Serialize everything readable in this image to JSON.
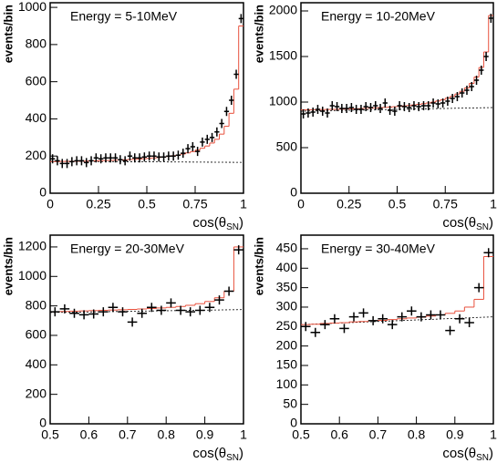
{
  "chart_data": [
    {
      "type": "histogram",
      "title": "Energy = 5-10MeV",
      "ylabel": "events/bin",
      "xlabel": [
        "cos(θ",
        "SN",
        ")"
      ],
      "bins": [
        0,
        0.025,
        0.05,
        0.075,
        0.1,
        0.125,
        0.15,
        0.175,
        0.2,
        0.225,
        0.25,
        0.275,
        0.3,
        0.325,
        0.35,
        0.375,
        0.4,
        0.425,
        0.45,
        0.475,
        0.5,
        0.525,
        0.55,
        0.575,
        0.6,
        0.625,
        0.65,
        0.675,
        0.7,
        0.725,
        0.75,
        0.775,
        0.8,
        0.825,
        0.85,
        0.875,
        0.9,
        0.925,
        0.95,
        0.975,
        1
      ],
      "values": [
        185,
        175,
        160,
        160,
        170,
        175,
        175,
        165,
        175,
        190,
        185,
        190,
        190,
        190,
        180,
        175,
        200,
        190,
        190,
        195,
        200,
        200,
        195,
        195,
        200,
        200,
        205,
        215,
        240,
        250,
        225,
        275,
        290,
        300,
        330,
        375,
        440,
        500,
        640,
        940
      ],
      "fit": [
        170,
        170,
        171,
        171,
        172,
        172,
        173,
        173,
        174,
        174,
        175,
        176,
        177,
        178,
        179,
        180,
        181,
        182,
        184,
        186,
        188,
        190,
        192,
        195,
        198,
        202,
        206,
        211,
        217,
        224,
        232,
        242,
        254,
        270,
        290,
        318,
        360,
        430,
        560,
        900
      ],
      "fit_color": "#e8503c",
      "baseline": [
        172,
        166
      ],
      "xlim": [
        0,
        1
      ],
      "ylim": [
        0,
        1025
      ],
      "xticks": [
        0,
        0.25,
        0.5,
        0.75,
        1
      ],
      "yticks": [
        0,
        200,
        400,
        600,
        800,
        1000
      ]
    },
    {
      "type": "histogram",
      "title": "Energy = 10-20MeV",
      "ylabel": "events/bin",
      "xlabel": [
        "cos(θ",
        "SN",
        ")"
      ],
      "bins": [
        0,
        0.025,
        0.05,
        0.075,
        0.1,
        0.125,
        0.15,
        0.175,
        0.2,
        0.225,
        0.25,
        0.275,
        0.3,
        0.325,
        0.35,
        0.375,
        0.4,
        0.425,
        0.45,
        0.475,
        0.5,
        0.525,
        0.55,
        0.575,
        0.6,
        0.625,
        0.65,
        0.675,
        0.7,
        0.725,
        0.75,
        0.775,
        0.8,
        0.825,
        0.85,
        0.875,
        0.9,
        0.925,
        0.95,
        0.975,
        1
      ],
      "values": [
        870,
        880,
        890,
        920,
        900,
        880,
        960,
        950,
        930,
        930,
        940,
        920,
        920,
        950,
        940,
        960,
        930,
        990,
        910,
        900,
        960,
        950,
        940,
        960,
        950,
        960,
        960,
        990,
        980,
        990,
        1010,
        1040,
        1060,
        1100,
        1130,
        1170,
        1240,
        1350,
        1500,
        1920
      ],
      "fit": [
        915,
        915,
        916,
        917,
        918,
        919,
        920,
        921,
        922,
        923,
        925,
        927,
        929,
        931,
        933,
        936,
        939,
        942,
        945,
        949,
        953,
        958,
        963,
        969,
        975,
        982,
        990,
        1000,
        1012,
        1026,
        1043,
        1063,
        1088,
        1118,
        1155,
        1205,
        1275,
        1380,
        1550,
        1950
      ],
      "fit_color": "#e8503c",
      "baseline": [
        900,
        940
      ],
      "xlim": [
        0,
        1
      ],
      "ylim": [
        0,
        2090
      ],
      "xticks": [
        0,
        0.25,
        0.5,
        0.75,
        1
      ],
      "yticks": [
        0,
        500,
        1000,
        1500,
        2000
      ]
    },
    {
      "type": "histogram",
      "title": "Energy = 20-30MeV",
      "ylabel": "events/bin",
      "xlabel": [
        "cos(θ",
        "SN",
        ")"
      ],
      "bins": [
        0.5,
        0.525,
        0.55,
        0.575,
        0.6,
        0.625,
        0.65,
        0.675,
        0.7,
        0.725,
        0.75,
        0.775,
        0.8,
        0.825,
        0.85,
        0.875,
        0.9,
        0.925,
        0.95,
        0.975,
        1
      ],
      "values": [
        760,
        780,
        750,
        740,
        745,
        760,
        790,
        760,
        690,
        750,
        790,
        770,
        820,
        770,
        760,
        770,
        790,
        840,
        900,
        1180
      ],
      "fit": [
        760,
        762,
        764,
        766,
        768,
        770,
        772,
        774,
        776,
        779,
        782,
        786,
        790,
        796,
        804,
        815,
        830,
        855,
        900,
        1200
      ],
      "fit_color": "#e8503c",
      "baseline": [
        755,
        775
      ],
      "xlim": [
        0.5,
        1
      ],
      "ylim": [
        0,
        1280
      ],
      "xticks": [
        0.5,
        0.6,
        0.7,
        0.8,
        0.9,
        1
      ],
      "yticks": [
        0,
        200,
        400,
        600,
        800,
        1000,
        1200
      ]
    },
    {
      "type": "histogram",
      "title": "Energy = 30-40MeV",
      "ylabel": "events/bin",
      "xlabel": [
        "cos(θ",
        "SN",
        ")"
      ],
      "bins": [
        0.5,
        0.525,
        0.55,
        0.575,
        0.6,
        0.625,
        0.65,
        0.675,
        0.7,
        0.725,
        0.75,
        0.775,
        0.8,
        0.825,
        0.85,
        0.875,
        0.9,
        0.925,
        0.95,
        0.975,
        1
      ],
      "values": [
        250,
        235,
        255,
        270,
        245,
        275,
        285,
        265,
        270,
        255,
        275,
        290,
        275,
        280,
        280,
        240,
        270,
        260,
        350,
        440
      ],
      "fit": [
        255,
        256,
        258,
        259,
        260,
        262,
        263,
        265,
        266,
        268,
        270,
        272,
        274,
        277,
        280,
        284,
        290,
        300,
        320,
        430
      ],
      "fit_color": "#e8503c",
      "baseline": [
        255,
        275
      ],
      "xlim": [
        0.5,
        1
      ],
      "ylim": [
        0,
        485
      ],
      "xticks": [
        0.5,
        0.6,
        0.7,
        0.8,
        0.9,
        1
      ],
      "yticks": [
        0,
        50,
        100,
        150,
        200,
        250,
        300,
        350,
        400,
        450
      ]
    }
  ]
}
